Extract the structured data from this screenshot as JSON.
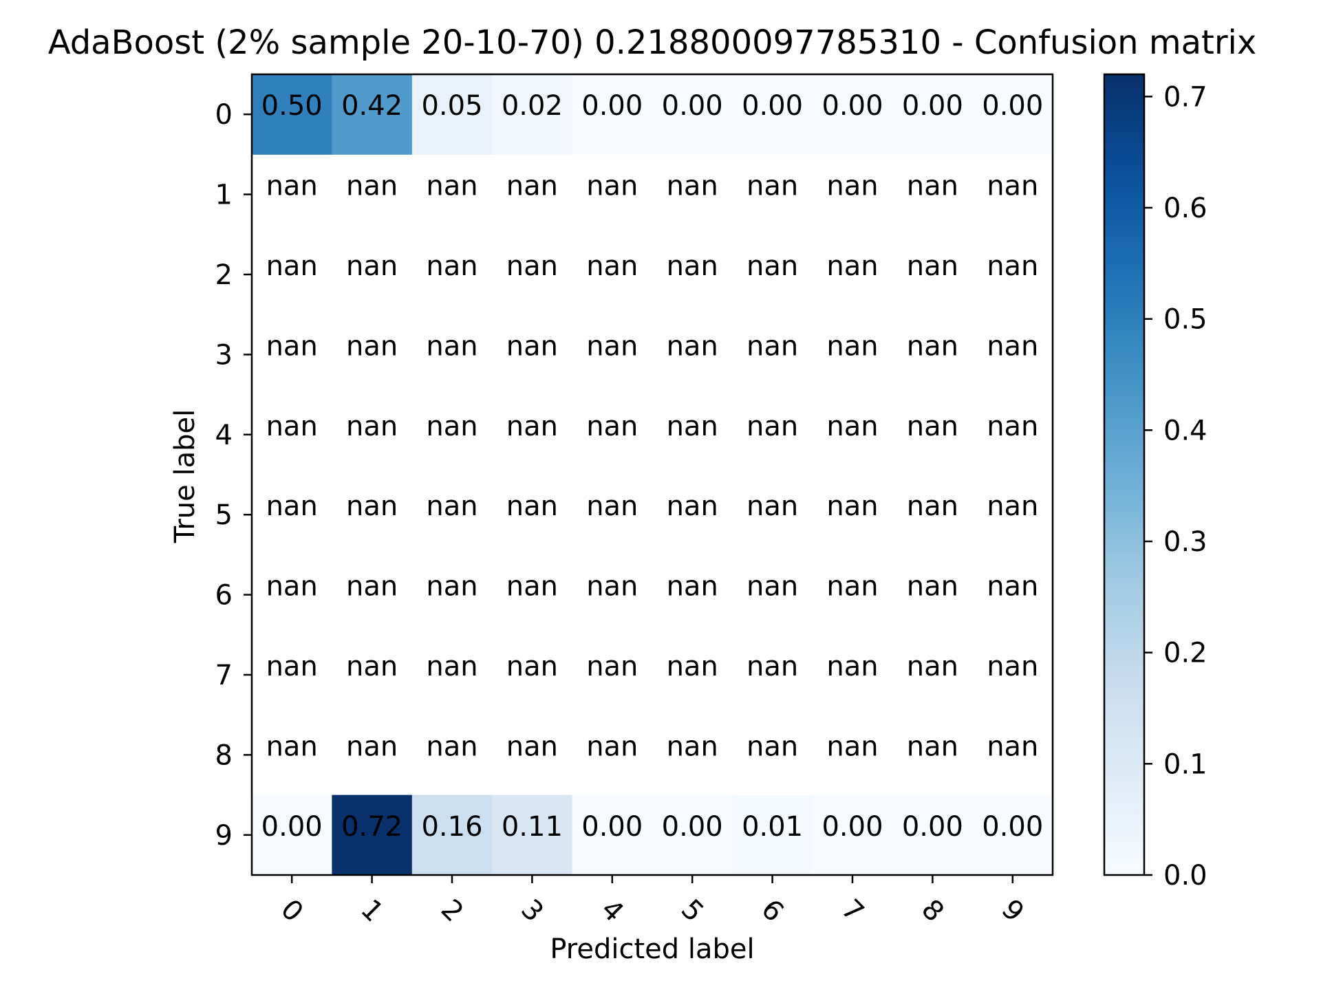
{
  "chart_data": {
    "type": "heatmap",
    "title": "AdaBoost (2% sample 20-10-70) 0.218800097785310 - Confusion matrix",
    "xlabel": "Predicted label",
    "ylabel": "True label",
    "x_categories": [
      "0",
      "1",
      "2",
      "3",
      "4",
      "5",
      "6",
      "7",
      "8",
      "9"
    ],
    "y_categories": [
      "0",
      "1",
      "2",
      "3",
      "4",
      "5",
      "6",
      "7",
      "8",
      "9"
    ],
    "values": [
      [
        0.5,
        0.42,
        0.05,
        0.02,
        0.0,
        0.0,
        0.0,
        0.0,
        0.0,
        0.0
      ],
      [
        null,
        null,
        null,
        null,
        null,
        null,
        null,
        null,
        null,
        null
      ],
      [
        null,
        null,
        null,
        null,
        null,
        null,
        null,
        null,
        null,
        null
      ],
      [
        null,
        null,
        null,
        null,
        null,
        null,
        null,
        null,
        null,
        null
      ],
      [
        null,
        null,
        null,
        null,
        null,
        null,
        null,
        null,
        null,
        null
      ],
      [
        null,
        null,
        null,
        null,
        null,
        null,
        null,
        null,
        null,
        null
      ],
      [
        null,
        null,
        null,
        null,
        null,
        null,
        null,
        null,
        null,
        null
      ],
      [
        null,
        null,
        null,
        null,
        null,
        null,
        null,
        null,
        null,
        null
      ],
      [
        null,
        null,
        null,
        null,
        null,
        null,
        null,
        null,
        null,
        null
      ],
      [
        0.0,
        0.72,
        0.16,
        0.11,
        0.0,
        0.0,
        0.01,
        0.0,
        0.0,
        0.0
      ]
    ],
    "cell_labels": [
      [
        "0.50",
        "0.42",
        "0.05",
        "0.02",
        "0.00",
        "0.00",
        "0.00",
        "0.00",
        "0.00",
        "0.00"
      ],
      [
        "nan",
        "nan",
        "nan",
        "nan",
        "nan",
        "nan",
        "nan",
        "nan",
        "nan",
        "nan"
      ],
      [
        "nan",
        "nan",
        "nan",
        "nan",
        "nan",
        "nan",
        "nan",
        "nan",
        "nan",
        "nan"
      ],
      [
        "nan",
        "nan",
        "nan",
        "nan",
        "nan",
        "nan",
        "nan",
        "nan",
        "nan",
        "nan"
      ],
      [
        "nan",
        "nan",
        "nan",
        "nan",
        "nan",
        "nan",
        "nan",
        "nan",
        "nan",
        "nan"
      ],
      [
        "nan",
        "nan",
        "nan",
        "nan",
        "nan",
        "nan",
        "nan",
        "nan",
        "nan",
        "nan"
      ],
      [
        "nan",
        "nan",
        "nan",
        "nan",
        "nan",
        "nan",
        "nan",
        "nan",
        "nan",
        "nan"
      ],
      [
        "nan",
        "nan",
        "nan",
        "nan",
        "nan",
        "nan",
        "nan",
        "nan",
        "nan",
        "nan"
      ],
      [
        "nan",
        "nan",
        "nan",
        "nan",
        "nan",
        "nan",
        "nan",
        "nan",
        "nan",
        "nan"
      ],
      [
        "0.00",
        "0.72",
        "0.16",
        "0.11",
        "0.00",
        "0.00",
        "0.01",
        "0.00",
        "0.00",
        "0.00"
      ]
    ],
    "colorbar": {
      "colormap": "Blues",
      "range": [
        0.0,
        0.72
      ],
      "ticks": [
        0.0,
        0.1,
        0.2,
        0.3,
        0.4,
        0.5,
        0.6,
        0.7
      ],
      "tick_labels": [
        "0.0",
        "0.1",
        "0.2",
        "0.3",
        "0.4",
        "0.5",
        "0.6",
        "0.7"
      ]
    },
    "x_tick_rotation_deg": 45,
    "grid": false
  }
}
